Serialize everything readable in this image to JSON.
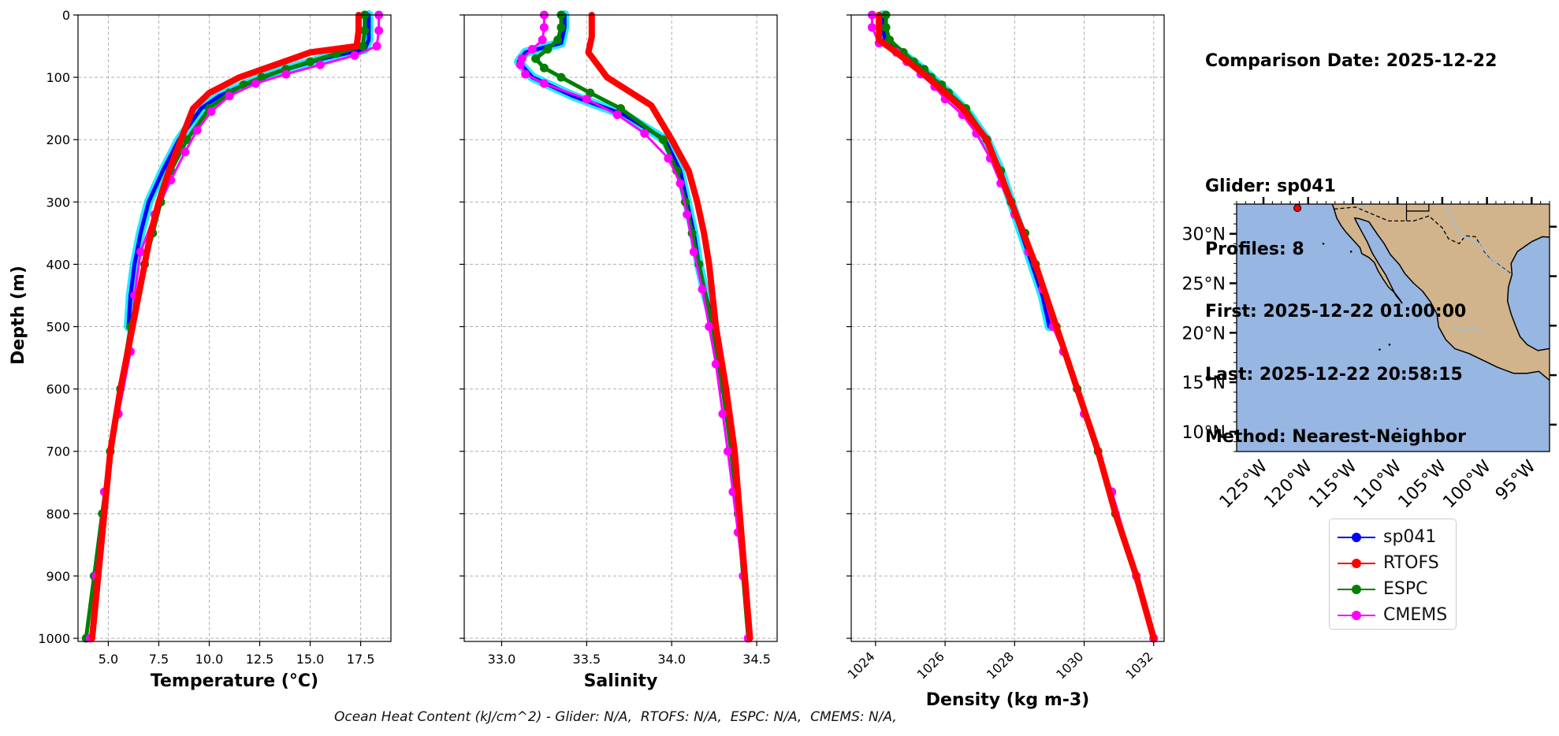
{
  "info": {
    "comparison_date": "Comparison Date: 2025-12-22",
    "glider": "Glider: sp041",
    "profiles": "Profiles: 8",
    "first": "First: 2025-12-22 01:00:00",
    "last": "Last: 2025-12-22 20:58:15",
    "method": "Method: Nearest-Neighbor"
  },
  "footer": "Ocean Heat Content (kJ/cm^2) - Glider: N/A,  RTOFS: N/A,  ESPC: N/A,  CMEMS: N/A,",
  "legend": [
    {
      "name": "sp041",
      "color": "#0000ff"
    },
    {
      "name": "RTOFS",
      "color": "#ff0000"
    },
    {
      "name": "ESPC",
      "color": "#008000"
    },
    {
      "name": "CMEMS",
      "color": "#ff00ff"
    }
  ],
  "chart_data": [
    {
      "type": "line",
      "xlabel": "Temperature (°C)",
      "ylabel": "Depth (m)",
      "xlim": [
        3.5,
        19
      ],
      "ylim": [
        1005,
        0
      ],
      "xticks": [
        5.0,
        7.5,
        10.0,
        12.5,
        15.0,
        17.5
      ],
      "xtick_labels": [
        "5.0",
        "7.5",
        "10.0",
        "12.5",
        "15.0",
        "17.5"
      ],
      "yticks": [
        0,
        100,
        200,
        300,
        400,
        500,
        600,
        700,
        800,
        900,
        1000
      ],
      "grid": true,
      "series": [
        {
          "name": "sp041",
          "color": "#0000ff",
          "depth": [
            0,
            20,
            40,
            55,
            70,
            90,
            110,
            130,
            150,
            200,
            250,
            300,
            350,
            400,
            450,
            500
          ],
          "values": [
            17.9,
            17.9,
            17.9,
            17.7,
            15.6,
            13.5,
            11.9,
            10.5,
            9.6,
            8.5,
            7.7,
            7.0,
            6.6,
            6.3,
            6.1,
            6.0
          ]
        },
        {
          "name": "RTOFS",
          "color": "#ff0000",
          "depth": [
            0,
            25,
            50,
            60,
            75,
            100,
            125,
            150,
            200,
            250,
            300,
            350,
            400,
            450,
            500,
            600,
            700,
            800,
            900,
            1000
          ],
          "values": [
            17.4,
            17.4,
            17.3,
            15.0,
            13.7,
            11.5,
            10.0,
            9.2,
            8.6,
            8.0,
            7.5,
            7.1,
            6.8,
            6.5,
            6.2,
            5.6,
            5.1,
            4.8,
            4.5,
            4.2
          ]
        },
        {
          "name": "ESPC",
          "color": "#008000",
          "depth": [
            0,
            25,
            50,
            62,
            75,
            87,
            100,
            112,
            125,
            150,
            200,
            250,
            300,
            350,
            400,
            500,
            600,
            700,
            800,
            900,
            1000
          ],
          "values": [
            17.7,
            17.7,
            17.6,
            16.3,
            15.0,
            13.8,
            12.6,
            11.7,
            11.0,
            10.0,
            8.9,
            8.1,
            7.6,
            7.2,
            6.8,
            6.1,
            5.6,
            5.1,
            4.7,
            4.3,
            3.9
          ]
        },
        {
          "name": "CMEMS",
          "color": "#ff00ff",
          "depth": [
            0,
            25,
            50,
            65,
            80,
            95,
            110,
            130,
            155,
            185,
            220,
            265,
            320,
            380,
            450,
            540,
            640,
            765,
            900,
            1000
          ],
          "values": [
            18.4,
            18.4,
            18.3,
            17.2,
            15.5,
            13.8,
            12.3,
            11.0,
            10.1,
            9.4,
            8.8,
            8.1,
            7.3,
            6.6,
            6.3,
            6.1,
            5.5,
            4.8,
            4.4,
            4.1
          ]
        }
      ]
    },
    {
      "type": "line",
      "xlabel": "Salinity",
      "ylabel": "",
      "xlim": [
        32.78,
        34.62
      ],
      "ylim": [
        1005,
        0
      ],
      "xticks": [
        33.0,
        33.5,
        34.0,
        34.5
      ],
      "xtick_labels": [
        "33.0",
        "33.5",
        "34.0",
        "34.5"
      ],
      "yticks": [
        0,
        100,
        200,
        300,
        400,
        500,
        600,
        700,
        800,
        900,
        1000
      ],
      "grid": true,
      "series": [
        {
          "name": "sp041",
          "color": "#0000ff",
          "depth": [
            0,
            20,
            45,
            60,
            75,
            100,
            130,
            160,
            200,
            250,
            300,
            350,
            400,
            450,
            500
          ],
          "values": [
            33.37,
            33.37,
            33.35,
            33.14,
            33.1,
            33.18,
            33.42,
            33.72,
            33.96,
            34.05,
            34.09,
            34.13,
            34.16,
            34.2,
            34.25
          ]
        },
        {
          "name": "RTOFS",
          "color": "#ff0000",
          "depth": [
            0,
            35,
            60,
            100,
            145,
            200,
            250,
            300,
            350,
            400,
            500,
            600,
            700,
            800,
            900,
            1000
          ],
          "values": [
            33.53,
            33.53,
            33.51,
            33.62,
            33.88,
            34.0,
            34.1,
            34.15,
            34.19,
            34.22,
            34.26,
            34.32,
            34.37,
            34.4,
            34.43,
            34.46
          ]
        },
        {
          "name": "ESPC",
          "color": "#008000",
          "depth": [
            0,
            20,
            40,
            55,
            70,
            85,
            100,
            125,
            150,
            200,
            250,
            300,
            350,
            400,
            500,
            600,
            700,
            800,
            900,
            1000
          ],
          "values": [
            33.35,
            33.35,
            33.33,
            33.27,
            33.2,
            33.25,
            33.35,
            33.52,
            33.7,
            33.95,
            34.03,
            34.08,
            34.12,
            34.16,
            34.24,
            34.3,
            34.35,
            34.39,
            34.42,
            34.45
          ]
        },
        {
          "name": "CMEMS",
          "color": "#ff00ff",
          "depth": [
            0,
            20,
            40,
            55,
            70,
            80,
            95,
            110,
            135,
            160,
            190,
            230,
            270,
            320,
            380,
            440,
            500,
            560,
            640,
            700,
            765,
            830,
            900,
            1000
          ],
          "values": [
            33.25,
            33.25,
            33.24,
            33.18,
            33.12,
            33.11,
            33.14,
            33.25,
            33.5,
            33.68,
            33.84,
            33.98,
            34.05,
            34.09,
            34.13,
            34.18,
            34.22,
            34.26,
            34.3,
            34.33,
            34.36,
            34.39,
            34.42,
            34.45
          ]
        }
      ]
    },
    {
      "type": "line",
      "xlabel": "Density (kg m-3)",
      "ylabel": "",
      "xlim": [
        1023.3,
        1032.3
      ],
      "ylim": [
        1005,
        0
      ],
      "xticks": [
        1024,
        1026,
        1028,
        1030,
        1032
      ],
      "xtick_labels": [
        "1024",
        "1026",
        "1028",
        "1030",
        "1032"
      ],
      "yticks": [
        0,
        100,
        200,
        300,
        400,
        500,
        600,
        700,
        800,
        900,
        1000
      ],
      "grid": true,
      "series": [
        {
          "name": "sp041",
          "color": "#0000ff",
          "depth": [
            0,
            20,
            45,
            60,
            80,
            100,
            130,
            160,
            200,
            250,
            300,
            350,
            400,
            450,
            500
          ],
          "values": [
            1024.2,
            1024.2,
            1024.3,
            1024.7,
            1025.2,
            1025.6,
            1026.2,
            1026.7,
            1027.2,
            1027.6,
            1027.9,
            1028.2,
            1028.5,
            1028.8,
            1029.0
          ]
        },
        {
          "name": "RTOFS",
          "color": "#ff0000",
          "depth": [
            0,
            40,
            60,
            100,
            150,
            200,
            300,
            400,
            500,
            600,
            700,
            800,
            900,
            1000
          ],
          "values": [
            1024.1,
            1024.1,
            1024.6,
            1025.5,
            1026.5,
            1027.2,
            1027.9,
            1028.6,
            1029.2,
            1029.8,
            1030.4,
            1030.9,
            1031.5,
            1032.0
          ]
        },
        {
          "name": "ESPC",
          "color": "#008000",
          "depth": [
            0,
            20,
            40,
            60,
            75,
            87,
            100,
            112,
            125,
            150,
            200,
            250,
            300,
            350,
            400,
            500,
            600,
            700,
            800,
            900,
            1000
          ],
          "values": [
            1024.3,
            1024.3,
            1024.4,
            1024.8,
            1025.1,
            1025.4,
            1025.6,
            1025.9,
            1026.1,
            1026.6,
            1027.2,
            1027.6,
            1027.9,
            1028.3,
            1028.6,
            1029.2,
            1029.8,
            1030.4,
            1030.9,
            1031.5,
            1032.0
          ]
        },
        {
          "name": "CMEMS",
          "color": "#ff00ff",
          "depth": [
            0,
            20,
            45,
            60,
            75,
            95,
            115,
            135,
            160,
            190,
            230,
            270,
            320,
            380,
            440,
            500,
            540,
            640,
            765,
            900,
            1000
          ],
          "values": [
            1023.9,
            1023.9,
            1024.1,
            1024.6,
            1024.9,
            1025.3,
            1025.7,
            1026.0,
            1026.5,
            1026.9,
            1027.3,
            1027.6,
            1028.0,
            1028.4,
            1028.8,
            1029.1,
            1029.4,
            1030.0,
            1030.8,
            1031.5,
            1032.0
          ]
        }
      ]
    }
  ],
  "map": {
    "lon_range": [
      -128,
      -93
    ],
    "lat_range": [
      8,
      33
    ],
    "lat_ticks": [
      "30°N",
      "25°N",
      "20°N",
      "15°N",
      "10°N"
    ],
    "lat_values": [
      30,
      25,
      20,
      15,
      10
    ],
    "lon_ticks": [
      "125°W",
      "120°W",
      "115°W",
      "110°W",
      "105°W",
      "100°W",
      "95°W"
    ],
    "lon_values": [
      -125,
      -120,
      -115,
      -110,
      -105,
      -100,
      -95
    ],
    "ocean_color": "#97b6e1",
    "land_color": "#d2b48c",
    "glider_marker": {
      "lon": -121.2,
      "lat": 32.6
    }
  }
}
